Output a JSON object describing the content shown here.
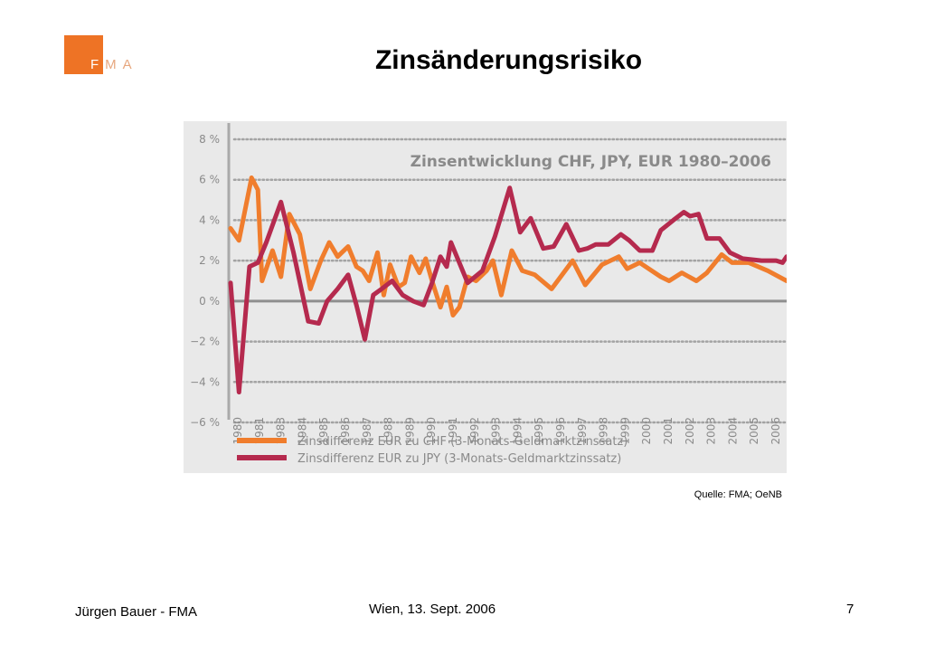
{
  "slide": {
    "title": "Zinsänderungsrisiko",
    "logo_text": "FMA",
    "source": "Quelle: FMA;  OeNB",
    "footer_left": "Jürgen Bauer - FMA",
    "footer_center": "Wien, 13. Sept. 2006",
    "page_number": "7"
  },
  "colors": {
    "brand_orange": "#ee7325",
    "chart_bg": "#e9e9e9",
    "series_chf": "#f07d2d",
    "series_jpy": "#b52a4e",
    "text_gray": "#8a8a8a"
  },
  "chart_data": {
    "type": "line",
    "title": "Zinsentwicklung CHF, JPY, EUR 1980–2006",
    "ylim": [
      -6,
      8
    ],
    "yticks": [
      8,
      6,
      4,
      2,
      0,
      -2,
      -4,
      -6
    ],
    "ytick_labels": [
      "8 %",
      "6 %",
      "4 %",
      "2 %",
      "0 %",
      "−2 %",
      "−4 %",
      "−6 %"
    ],
    "xlim": [
      1980,
      2006.5
    ],
    "categories": [
      "1980",
      "1981",
      "1983",
      "1984",
      "1985",
      "1986",
      "1987",
      "1988",
      "1989",
      "1990",
      "1991",
      "1992",
      "1993",
      "1994",
      "1995",
      "1996",
      "1997",
      "1998",
      "1999",
      "2000",
      "2001",
      "2002",
      "2003",
      "2004",
      "2005",
      "2006"
    ],
    "grid": "dotted horizontal",
    "legend_position": "bottom",
    "series": [
      {
        "name": "Zinsdifferenz EUR zu CHF (3-Monats-Geldmarktzinssatz)",
        "color": "#f07d2d",
        "x": [
          1980,
          1980.4,
          1981.0,
          1981.3,
          1981.5,
          1982.0,
          1982.4,
          1982.8,
          1983.3,
          1983.8,
          1984.3,
          1984.7,
          1985.1,
          1985.6,
          1986.0,
          1986.3,
          1986.6,
          1987.0,
          1987.3,
          1987.6,
          1988.0,
          1988.3,
          1988.6,
          1989.0,
          1989.3,
          1989.6,
          1990.0,
          1990.3,
          1990.6,
          1990.9,
          1991.3,
          1991.7,
          1992.2,
          1992.5,
          1992.9,
          1993.4,
          1993.9,
          1994.5,
          1995.3,
          1996.3,
          1996.9,
          1997.7,
          1998.5,
          1998.9,
          1999.5,
          2000.5,
          2000.9,
          2001.5,
          2002.2,
          2002.7,
          2003.4,
          2003.9,
          2004.7,
          2005.6,
          2006.5
        ],
        "y": [
          3.6,
          3.0,
          6.1,
          5.5,
          1.0,
          2.5,
          1.2,
          4.3,
          3.3,
          0.6,
          2.0,
          2.9,
          2.2,
          2.7,
          1.7,
          1.5,
          1.0,
          2.4,
          0.3,
          1.8,
          0.7,
          0.9,
          2.2,
          1.4,
          2.1,
          1.0,
          -0.3,
          0.7,
          -0.7,
          -0.3,
          1.2,
          1.0,
          1.5,
          2.0,
          0.3,
          2.5,
          1.5,
          1.3,
          0.6,
          2.0,
          0.8,
          1.8,
          2.2,
          1.6,
          1.9,
          1.2,
          1.0,
          1.4,
          1.0,
          1.4,
          2.3,
          1.9,
          1.9,
          1.5,
          1.0
        ]
      },
      {
        "name": "Zinsdifferenz EUR zu JPY (3-Monats-Geldmarktzinssatz)",
        "color": "#b52a4e",
        "x": [
          1980,
          1980.4,
          1980.9,
          1981.3,
          1981.7,
          1982.4,
          1983.0,
          1983.7,
          1984.2,
          1984.6,
          1985.1,
          1985.6,
          1986.0,
          1986.4,
          1986.8,
          1987.2,
          1987.7,
          1988.2,
          1988.7,
          1989.2,
          1989.6,
          1990.0,
          1990.3,
          1990.5,
          1991.3,
          1992.0,
          1992.6,
          1993.3,
          1993.8,
          1994.3,
          1994.9,
          1995.4,
          1996.0,
          1996.6,
          1997.0,
          1997.4,
          1998.0,
          1998.6,
          1999.0,
          1999.5,
          2000.1,
          2000.5,
          2001.1,
          2001.6,
          2001.9,
          2002.3,
          2002.7,
          2003.3,
          2003.8,
          2004.4,
          2005.3,
          2006.0,
          2006.3,
          2006.5
        ],
        "y": [
          0.9,
          -4.5,
          1.7,
          1.9,
          2.9,
          4.9,
          2.4,
          -1.0,
          -1.1,
          0.0,
          0.6,
          1.3,
          -0.2,
          -1.9,
          0.3,
          0.6,
          1.0,
          0.3,
          0.0,
          -0.2,
          0.9,
          2.2,
          1.7,
          2.9,
          0.9,
          1.5,
          3.2,
          5.6,
          3.4,
          4.1,
          2.6,
          2.7,
          3.8,
          2.5,
          2.6,
          2.8,
          2.8,
          3.3,
          3.0,
          2.5,
          2.5,
          3.5,
          4.0,
          4.4,
          4.2,
          4.3,
          3.1,
          3.1,
          2.4,
          2.1,
          2.0,
          2.0,
          1.9,
          2.2
        ]
      }
    ]
  }
}
